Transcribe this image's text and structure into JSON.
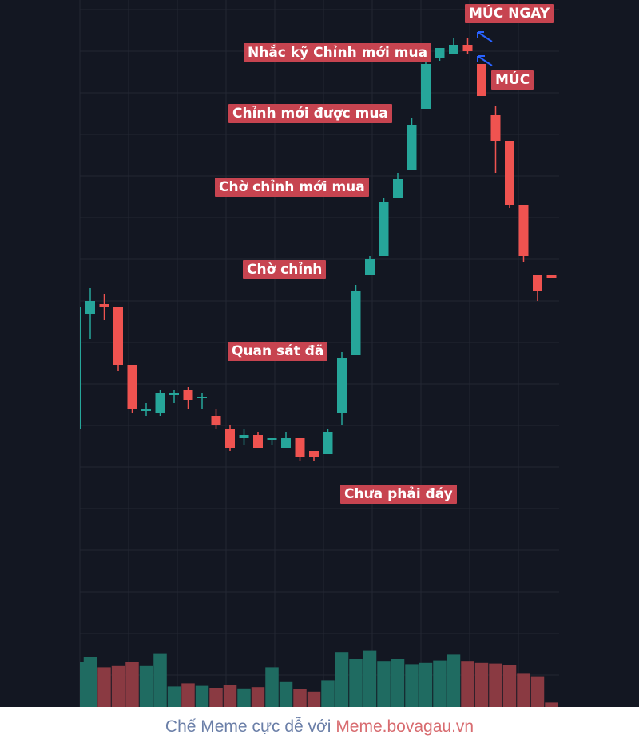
{
  "chart_data": {
    "type": "candlestick",
    "colors": {
      "background": "#131722",
      "up": "#26a69a",
      "down": "#ef5350",
      "grid": "#232733",
      "label_bg": "#c74450",
      "arrow": "#2962ff"
    },
    "candles": [
      {
        "o": 92,
        "h": 100,
        "l": 84,
        "c": 96
      },
      {
        "o": 95,
        "h": 98,
        "l": 90,
        "c": 94
      },
      {
        "o": 94,
        "h": 94,
        "l": 74,
        "c": 76
      },
      {
        "o": 76,
        "h": 76,
        "l": 61,
        "c": 62
      },
      {
        "o": 62,
        "h": 64,
        "l": 60,
        "c": 62
      },
      {
        "o": 61,
        "h": 68,
        "l": 60,
        "c": 67
      },
      {
        "o": 67,
        "h": 68,
        "l": 64,
        "c": 67
      },
      {
        "o": 68,
        "h": 69,
        "l": 62,
        "c": 65
      },
      {
        "o": 66,
        "h": 67,
        "l": 62,
        "c": 66
      },
      {
        "o": 60,
        "h": 62,
        "l": 56,
        "c": 57
      },
      {
        "o": 56,
        "h": 57,
        "l": 49,
        "c": 50
      },
      {
        "o": 53,
        "h": 56,
        "l": 51,
        "c": 54
      },
      {
        "o": 54,
        "h": 55,
        "l": 50,
        "c": 50
      },
      {
        "o": 53,
        "h": 53,
        "l": 51,
        "c": 53
      },
      {
        "o": 50,
        "h": 55,
        "l": 50,
        "c": 53
      },
      {
        "o": 53,
        "h": 53,
        "l": 46,
        "c": 47
      },
      {
        "o": 49,
        "h": 49,
        "l": 46,
        "c": 47
      },
      {
        "o": 48,
        "h": 56,
        "l": 48,
        "c": 55
      },
      {
        "o": 61,
        "h": 80,
        "l": 57,
        "c": 78
      },
      {
        "o": 79,
        "h": 101,
        "l": 79,
        "c": 99
      },
      {
        "o": 104,
        "h": 110,
        "l": 104,
        "c": 109
      },
      {
        "o": 110,
        "h": 128,
        "l": 110,
        "c": 127
      },
      {
        "o": 128,
        "h": 136,
        "l": 128,
        "c": 134
      },
      {
        "o": 137,
        "h": 153,
        "l": 137,
        "c": 151
      },
      {
        "o": 156,
        "h": 172,
        "l": 156,
        "c": 170
      },
      {
        "o": 172,
        "h": 175,
        "l": 171,
        "c": 175
      },
      {
        "o": 173,
        "h": 178,
        "l": 173,
        "c": 176
      },
      {
        "o": 176,
        "h": 178,
        "l": 173,
        "c": 174
      },
      {
        "o": 170,
        "h": 170,
        "l": 160,
        "c": 160
      },
      {
        "o": 154,
        "h": 157,
        "l": 136,
        "c": 146
      },
      {
        "o": 146,
        "h": 146,
        "l": 125,
        "c": 126
      },
      {
        "o": 126,
        "h": 126,
        "l": 108,
        "c": 110
      },
      {
        "o": 104,
        "h": 104,
        "l": 96,
        "c": 99
      },
      {
        "o": 104,
        "h": 104,
        "l": 103,
        "c": 103
      }
    ],
    "volume": [
      78,
      62,
      64,
      70,
      64,
      83,
      32,
      37,
      33,
      30,
      35,
      29,
      31,
      62,
      39,
      28,
      24,
      42,
      86,
      75,
      88,
      71,
      75,
      67,
      69,
      73,
      82,
      71,
      69,
      68,
      65,
      52,
      48,
      7
    ]
  },
  "annotations": [
    {
      "text": "MÚC NGAY"
    },
    {
      "text": "Nhắc kỹ Chỉnh mới mua"
    },
    {
      "text": "MÚC"
    },
    {
      "text": "Chỉnh mới được mua"
    },
    {
      "text": "Chờ chỉnh mới mua"
    },
    {
      "text": "Chờ chỉnh"
    },
    {
      "text": "Quan sát đã"
    },
    {
      "text": "Chưa phải đáy"
    }
  ],
  "footer": {
    "text": "Chế Meme cực dễ với",
    "site": "Meme.bovagau.vn"
  }
}
